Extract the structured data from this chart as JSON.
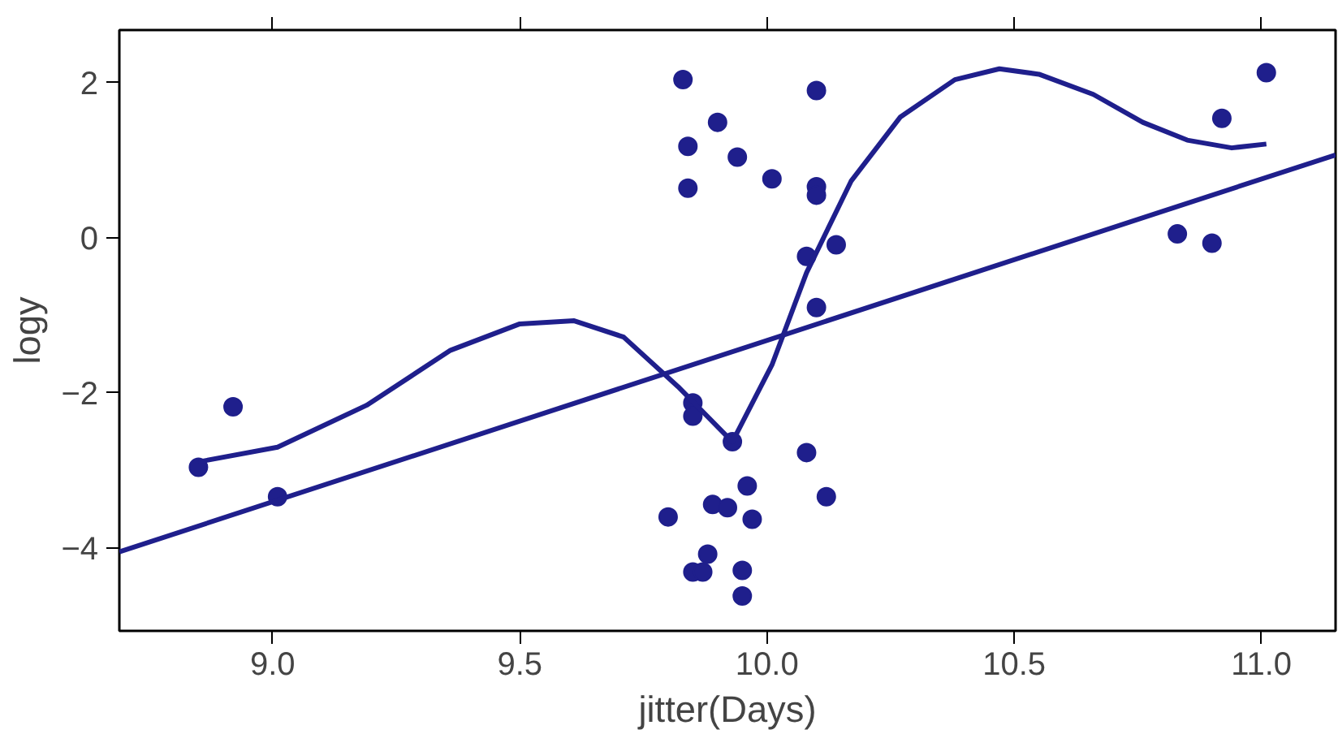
{
  "chart_data": {
    "type": "scatter",
    "xlabel": "jitter(Days)",
    "ylabel": "logy",
    "xlim": [
      8.69,
      11.15
    ],
    "ylim": [
      -5.07,
      2.68
    ],
    "xticks": [
      {
        "value": 9,
        "label": "9.0"
      },
      9.5,
      {
        "value": 10,
        "label": "10.0"
      },
      10.5,
      {
        "value": 11,
        "label": "11.0"
      }
    ],
    "yticks": [
      {
        "value": -4,
        "label": "−4"
      },
      {
        "value": -2,
        "label": "−2"
      },
      0,
      2
    ],
    "grid": false,
    "series": [
      {
        "marker": "circle",
        "color": "#1f1f8c",
        "x": [
          8.85,
          8.92,
          9.01,
          9.83,
          9.84,
          9.84,
          9.9,
          9.94,
          10.01,
          10.1,
          10.1,
          10.1,
          10.14,
          10.08,
          10.1,
          9.85,
          9.85,
          9.93,
          10.08,
          9.96,
          9.89,
          9.92,
          9.8,
          9.97,
          10.12,
          9.88,
          9.85,
          9.87,
          9.95,
          9.95,
          10.83,
          10.9,
          10.92,
          11.01
        ],
        "values": [
          -2.96,
          -2.18,
          -3.34,
          2.04,
          1.18,
          0.64,
          1.49,
          1.04,
          0.76,
          1.9,
          0.66,
          0.55,
          -0.09,
          -0.24,
          -0.9,
          -2.13,
          -2.3,
          -2.63,
          -2.77,
          -3.2,
          -3.44,
          -3.48,
          -3.6,
          -3.63,
          -3.34,
          -4.08,
          -4.31,
          -4.31,
          -4.29,
          -4.62,
          0.05,
          -0.07,
          1.54,
          2.13
        ]
      },
      {
        "type": "line",
        "color": "#1f1f8c",
        "x": [
          8.69,
          11.15
        ],
        "values": [
          -4.05,
          1.07
        ]
      },
      {
        "type": "line",
        "color": "#1f1f8c",
        "x": [
          8.85,
          9.01,
          9.19,
          9.36,
          9.5,
          9.61,
          9.71,
          9.82,
          9.93,
          10.01,
          10.08,
          10.17,
          10.27,
          10.38,
          10.47,
          10.55,
          10.66,
          10.76,
          10.85,
          10.94,
          11.01
        ],
        "values": [
          -2.89,
          -2.7,
          -2.16,
          -1.45,
          -1.11,
          -1.07,
          -1.28,
          -1.92,
          -2.63,
          -1.64,
          -0.45,
          0.73,
          1.56,
          2.04,
          2.18,
          2.11,
          1.85,
          1.49,
          1.26,
          1.16,
          1.21
        ]
      }
    ]
  }
}
